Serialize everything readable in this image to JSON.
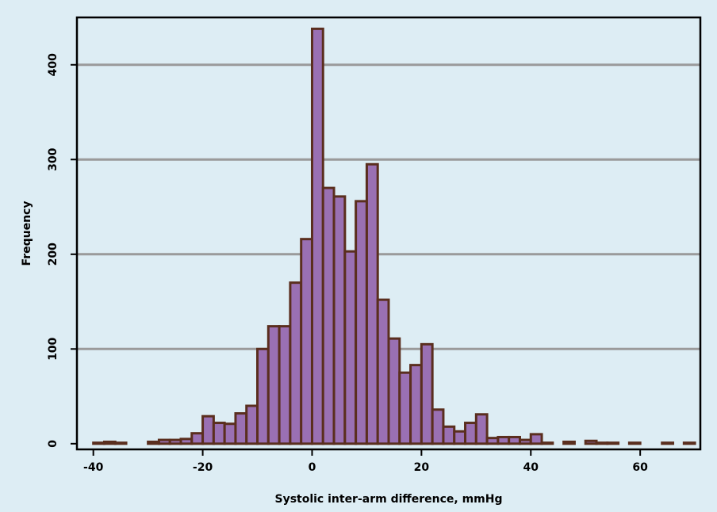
{
  "chart_data": {
    "type": "bar",
    "xlabel": "Systolic inter-arm difference, mmHg",
    "ylabel": "Frequency",
    "xlim": [
      -43,
      71
    ],
    "ylim": [
      -6,
      450
    ],
    "x_ticks": [
      -40,
      -20,
      0,
      20,
      40,
      60
    ],
    "y_ticks": [
      0,
      100,
      200,
      300,
      400
    ],
    "grid": "horizontal",
    "bin_width": 2,
    "bins": [
      {
        "start": -40,
        "end": -38,
        "value": 1
      },
      {
        "start": -38,
        "end": -36,
        "value": 2
      },
      {
        "start": -36,
        "end": -34,
        "value": 1
      },
      {
        "start": -30,
        "end": -28,
        "value": 2
      },
      {
        "start": -28,
        "end": -26,
        "value": 4
      },
      {
        "start": -26,
        "end": -24,
        "value": 4
      },
      {
        "start": -24,
        "end": -22,
        "value": 5
      },
      {
        "start": -22,
        "end": -20,
        "value": 11
      },
      {
        "start": -20,
        "end": -18,
        "value": 29
      },
      {
        "start": -18,
        "end": -16,
        "value": 22
      },
      {
        "start": -16,
        "end": -14,
        "value": 21
      },
      {
        "start": -14,
        "end": -12,
        "value": 32
      },
      {
        "start": -12,
        "end": -10,
        "value": 40
      },
      {
        "start": -10,
        "end": -8,
        "value": 100
      },
      {
        "start": -8,
        "end": -6,
        "value": 124
      },
      {
        "start": -6,
        "end": -4,
        "value": 124
      },
      {
        "start": -4,
        "end": -2,
        "value": 170
      },
      {
        "start": -2,
        "end": 0,
        "value": 216
      },
      {
        "start": 0,
        "end": 2,
        "value": 438
      },
      {
        "start": 2,
        "end": 4,
        "value": 270
      },
      {
        "start": 4,
        "end": 6,
        "value": 261
      },
      {
        "start": 6,
        "end": 8,
        "value": 203
      },
      {
        "start": 8,
        "end": 10,
        "value": 256
      },
      {
        "start": 10,
        "end": 12,
        "value": 295
      },
      {
        "start": 12,
        "end": 14,
        "value": 152
      },
      {
        "start": 14,
        "end": 16,
        "value": 111
      },
      {
        "start": 16,
        "end": 18,
        "value": 75
      },
      {
        "start": 18,
        "end": 20,
        "value": 83
      },
      {
        "start": 20,
        "end": 22,
        "value": 105
      },
      {
        "start": 22,
        "end": 24,
        "value": 36
      },
      {
        "start": 24,
        "end": 26,
        "value": 18
      },
      {
        "start": 26,
        "end": 28,
        "value": 13
      },
      {
        "start": 28,
        "end": 30,
        "value": 22
      },
      {
        "start": 30,
        "end": 32,
        "value": 31
      },
      {
        "start": 32,
        "end": 34,
        "value": 6
      },
      {
        "start": 34,
        "end": 36,
        "value": 7
      },
      {
        "start": 36,
        "end": 38,
        "value": 7
      },
      {
        "start": 38,
        "end": 40,
        "value": 4
      },
      {
        "start": 40,
        "end": 42,
        "value": 10
      },
      {
        "start": 42,
        "end": 44,
        "value": 1
      },
      {
        "start": 46,
        "end": 48,
        "value": 2
      },
      {
        "start": 50,
        "end": 52,
        "value": 3
      },
      {
        "start": 52,
        "end": 54,
        "value": 1
      },
      {
        "start": 54,
        "end": 56,
        "value": 1
      },
      {
        "start": 58,
        "end": 60,
        "value": 1
      },
      {
        "start": 64,
        "end": 66,
        "value": 1
      },
      {
        "start": 68,
        "end": 70,
        "value": 1
      }
    ],
    "colors": {
      "background": "#ddedf4",
      "bar_fill": "#9a70b3",
      "bar_edge": "#5a2e1e",
      "grid": "#9a9a9a"
    }
  }
}
